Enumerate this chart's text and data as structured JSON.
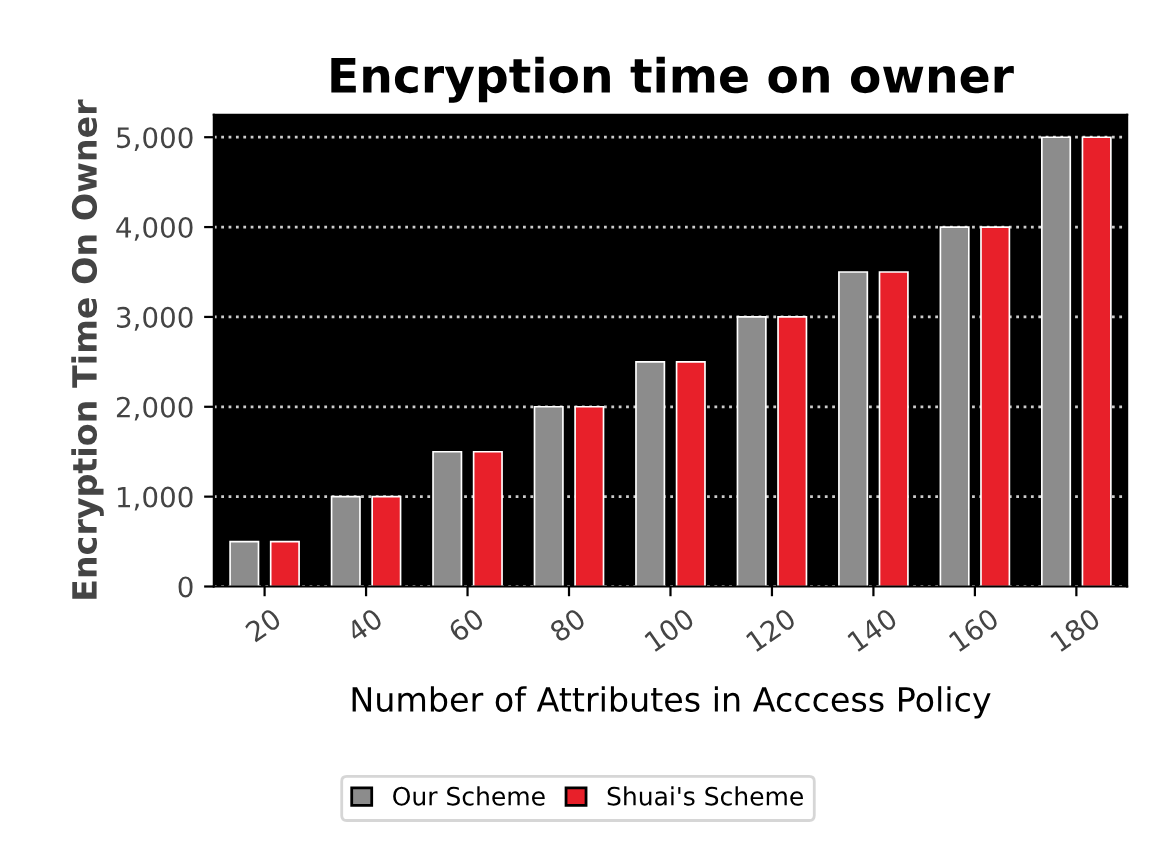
{
  "chart_data": {
    "type": "bar",
    "title": "Encryption time on owner",
    "xlabel": "Number of Attributes in Acccess Policy",
    "ylabel": "Encryption Time On Owner",
    "categories": [
      "20",
      "40",
      "60",
      "80",
      "100",
      "120",
      "140",
      "160",
      "180"
    ],
    "series": [
      {
        "name": "Our Scheme",
        "color": "#8c8c8c",
        "values": [
          500,
          1000,
          1500,
          2000,
          2500,
          3000,
          3500,
          4000,
          5000
        ]
      },
      {
        "name": "Shuai's Scheme",
        "color": "#e8202a",
        "values": [
          500,
          1000,
          1500,
          2000,
          2500,
          3000,
          3500,
          4000,
          5000
        ]
      }
    ],
    "ylim": [
      0,
      5250
    ],
    "yticks": [
      {
        "value": 0,
        "label": "0"
      },
      {
        "value": 1000,
        "label": "1,000"
      },
      {
        "value": 2000,
        "label": "2,000"
      },
      {
        "value": 3000,
        "label": "3,000"
      },
      {
        "value": 4000,
        "label": "4,000"
      },
      {
        "value": 5000,
        "label": "5,000"
      }
    ],
    "grid": "y",
    "legend": "bottom"
  }
}
